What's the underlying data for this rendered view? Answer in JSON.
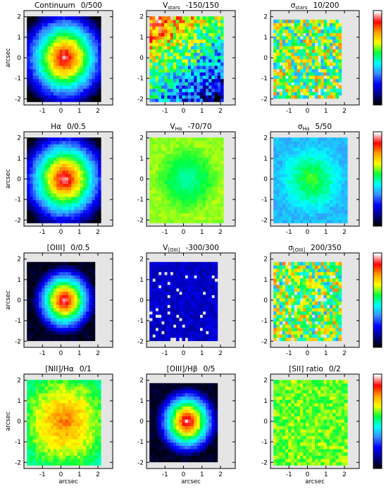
{
  "figure": {
    "axis_unit": "arcsec",
    "colorbar_colors": [
      "#000000",
      "#00008a",
      "#0000ff",
      "#3a8cff",
      "#00ffff",
      "#00ff3c",
      "#ffff00",
      "#ffa000",
      "#ff0000",
      "#ffffff"
    ]
  },
  "chart_data": [
    {
      "type": "heatmap",
      "title": "Continuum",
      "range_text": "0/500",
      "vmin": 0,
      "vmax": 500,
      "pattern": "peak",
      "xlim": [
        -2,
        2.8
      ],
      "ylim": [
        -2.3,
        2.3
      ],
      "xticks": [
        "-1",
        "0",
        "1",
        "2"
      ],
      "yticks": [
        "-2",
        "-1",
        "0",
        "1",
        "2"
      ],
      "ylabel": "arcsec",
      "xlabel": ""
    },
    {
      "type": "heatmap",
      "title": "V",
      "title_sub": "stars",
      "range_text": "-150/150",
      "vmin": -150,
      "vmax": 150,
      "pattern": "noisy-gradient",
      "xlim": [
        -2,
        2.8
      ],
      "ylim": [
        -2.3,
        2.3
      ],
      "xticks": [
        "-1",
        "0",
        "1",
        "2"
      ],
      "yticks": [
        "-2",
        "-1",
        "0",
        "1",
        "2"
      ],
      "ylabel": "",
      "xlabel": ""
    },
    {
      "type": "heatmap",
      "title": "σ",
      "title_sub": "stars",
      "range_text": "10/200",
      "vmin": 10,
      "vmax": 200,
      "pattern": "noisy",
      "xlim": [
        -2,
        2.8
      ],
      "ylim": [
        -2.3,
        2.3
      ],
      "xticks": [
        "-1",
        "0",
        "1",
        "2"
      ],
      "yticks": [
        "-2",
        "-1",
        "0",
        "1",
        "2"
      ],
      "ylabel": "",
      "xlabel": ""
    },
    {
      "type": "heatmap",
      "title": "Hα",
      "range_text": "0/0.5",
      "vmin": 0,
      "vmax": 0.5,
      "pattern": "peak",
      "xlim": [
        -2,
        2.8
      ],
      "ylim": [
        -2.3,
        2.3
      ],
      "xticks": [
        "-1",
        "0",
        "1",
        "2"
      ],
      "yticks": [
        "-2",
        "-1",
        "0",
        "1",
        "2"
      ],
      "ylabel": "arcsec",
      "xlabel": ""
    },
    {
      "type": "heatmap",
      "title": "V",
      "title_sub": "Hα",
      "range_text": "-70/70",
      "vmin": -70,
      "vmax": 70,
      "pattern": "flat-dip",
      "xlim": [
        -2,
        2.8
      ],
      "ylim": [
        -2.3,
        2.3
      ],
      "xticks": [
        "-1",
        "0",
        "1",
        "2"
      ],
      "yticks": [
        "-2",
        "-1",
        "0",
        "1",
        "2"
      ],
      "ylabel": "",
      "xlabel": ""
    },
    {
      "type": "heatmap",
      "title": "σ",
      "title_sub": "Hα",
      "range_text": "5/50",
      "vmin": 5,
      "vmax": 50,
      "pattern": "flat-bump",
      "xlim": [
        -2,
        2.8
      ],
      "ylim": [
        -2.3,
        2.3
      ],
      "xticks": [
        "-1",
        "0",
        "1",
        "2"
      ],
      "yticks": [
        "-2",
        "-1",
        "0",
        "1",
        "2"
      ],
      "ylabel": "",
      "xlabel": ""
    },
    {
      "type": "heatmap",
      "title": "[OIII]",
      "range_text": "0/0.5",
      "vmin": 0,
      "vmax": 0.5,
      "pattern": "compact-peak",
      "xlim": [
        -2,
        2.8
      ],
      "ylim": [
        -2.3,
        2.3
      ],
      "xticks": [
        "-1",
        "0",
        "1",
        "2"
      ],
      "yticks": [
        "-2",
        "-1",
        "0",
        "1",
        "2"
      ],
      "ylabel": "arcsec",
      "xlabel": ""
    },
    {
      "type": "heatmap",
      "title": "V",
      "title_sub": "[OIII]",
      "range_text": "-300/300",
      "vmin": -300,
      "vmax": 300,
      "pattern": "low",
      "xlim": [
        -2,
        2.8
      ],
      "ylim": [
        -2.3,
        2.3
      ],
      "xticks": [
        "-1",
        "0",
        "1",
        "2"
      ],
      "yticks": [
        "-2",
        "-1",
        "0",
        "1",
        "2"
      ],
      "ylabel": "",
      "xlabel": ""
    },
    {
      "type": "heatmap",
      "title": "σ",
      "title_sub": "[OIII]",
      "range_text": "200/350",
      "vmin": 200,
      "vmax": 350,
      "pattern": "noisy",
      "xlim": [
        -2,
        2.8
      ],
      "ylim": [
        -2.3,
        2.3
      ],
      "xticks": [
        "-1",
        "0",
        "1",
        "2"
      ],
      "yticks": [
        "-2",
        "-1",
        "0",
        "1",
        "2"
      ],
      "ylabel": "",
      "xlabel": ""
    },
    {
      "type": "heatmap",
      "title": "[NII]/Hα",
      "range_text": "0/1",
      "vmin": 0,
      "vmax": 1,
      "pattern": "mid-peak",
      "xlim": [
        -2,
        2.8
      ],
      "ylim": [
        -2.3,
        2.3
      ],
      "xticks": [
        "-1",
        "0",
        "1",
        "2"
      ],
      "yticks": [
        "-2",
        "-1",
        "0",
        "1",
        "2"
      ],
      "ylabel": "arcsec",
      "xlabel": "arcsec"
    },
    {
      "type": "heatmap",
      "title": "[OIII]/Hβ",
      "range_text": "0/5",
      "vmin": 0,
      "vmax": 5,
      "pattern": "compact-peak",
      "xlim": [
        -2,
        2.8
      ],
      "ylim": [
        -2.3,
        2.3
      ],
      "xticks": [
        "-1",
        "0",
        "1",
        "2"
      ],
      "yticks": [
        "-2",
        "-1",
        "0",
        "1",
        "2"
      ],
      "ylabel": "",
      "xlabel": "arcsec"
    },
    {
      "type": "heatmap",
      "title": "[SII] ratio",
      "range_text": "0/2",
      "vmin": 0,
      "vmax": 2,
      "pattern": "flat-high",
      "xlim": [
        -2,
        2.8
      ],
      "ylim": [
        -2.3,
        2.3
      ],
      "xticks": [
        "-1",
        "0",
        "1",
        "2"
      ],
      "yticks": [
        "-2",
        "-1",
        "0",
        "1",
        "2"
      ],
      "ylabel": "",
      "xlabel": "arcsec"
    }
  ]
}
